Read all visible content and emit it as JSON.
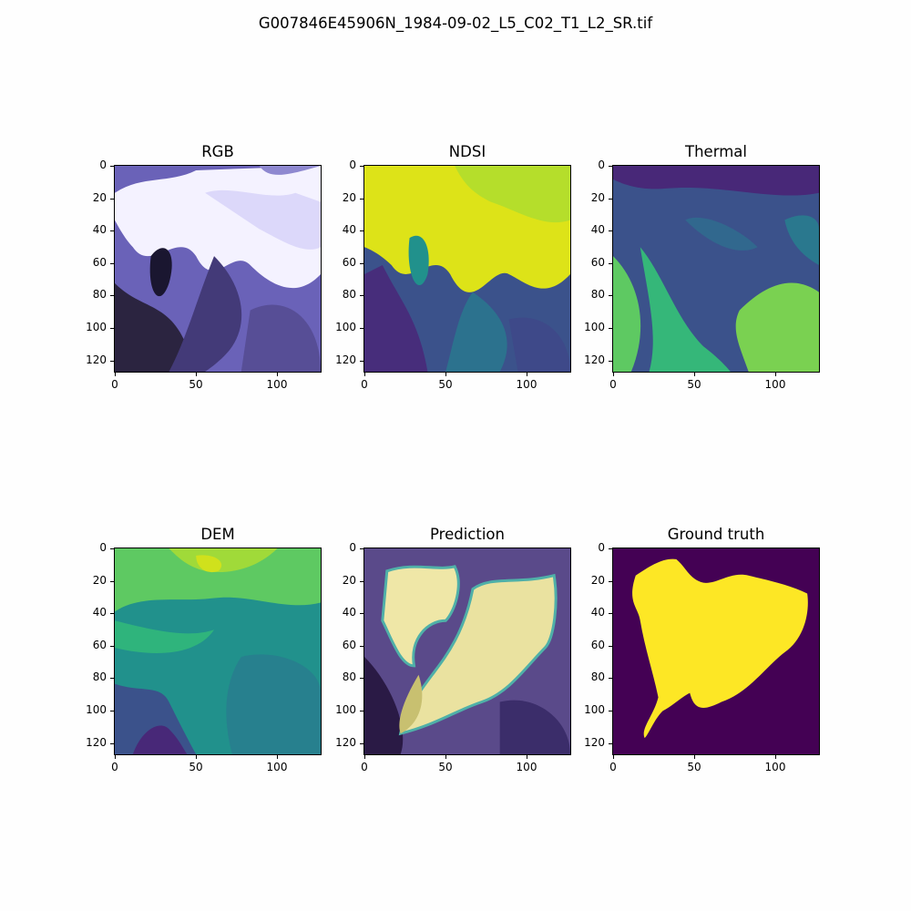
{
  "figure": {
    "suptitle": "G007846E45906N_1984-09-02_L5_C02_T1_L2_SR.tif",
    "panels": [
      {
        "title": "RGB",
        "kind": "rgb"
      },
      {
        "title": "NDSI",
        "kind": "ndsi"
      },
      {
        "title": "Thermal",
        "kind": "thermal"
      },
      {
        "title": "DEM",
        "kind": "dem"
      },
      {
        "title": "Prediction",
        "kind": "prediction"
      },
      {
        "title": "Ground truth",
        "kind": "truth"
      }
    ],
    "axis": {
      "y_ticks": [
        "0",
        "20",
        "40",
        "60",
        "80",
        "100",
        "120"
      ],
      "x_ticks": [
        "0",
        "50",
        "100"
      ]
    },
    "colors": {
      "viridis_dark": "#440154",
      "viridis_blue": "#3b528b",
      "viridis_teal": "#21918c",
      "viridis_green": "#5ec962",
      "viridis_yellow": "#fde725",
      "rgb_snow": "#f4f2ff",
      "rgb_blue": "#7b74d6",
      "rgb_dark": "#2b2440"
    }
  }
}
